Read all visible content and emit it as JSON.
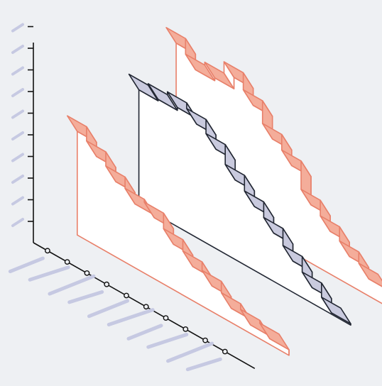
{
  "chart_data": {
    "type": "3d-step-area",
    "title": "",
    "xlabel": "",
    "ylabel": "",
    "zlabel": "",
    "x_ticks": 12,
    "y_ticks": 10,
    "tick_labels_blurred": true,
    "series": [
      {
        "color": "#e8806a",
        "fill": "#f4ad9a",
        "values": [
          7.3,
          6.3,
          5.3,
          4.5,
          4.3,
          3.2,
          2.4,
          1.8,
          1.0,
          0.6,
          0.4
        ]
      },
      {
        "color": "#222733",
        "fill": "#c9cade",
        "values": [
          8.1,
          8.2,
          8.4,
          8.0,
          7.0,
          5.6,
          4.5,
          3.4,
          2.2,
          1.1,
          0.1
        ]
      },
      {
        "color": "#e8806a",
        "fill": "#f4ad9a",
        "values": [
          10.1,
          9.0,
          9.2,
          10.0,
          8.8,
          7.2,
          6.1,
          4.1,
          3.0,
          2.0,
          1.2
        ]
      }
    ],
    "grid": false,
    "legend": "none"
  }
}
